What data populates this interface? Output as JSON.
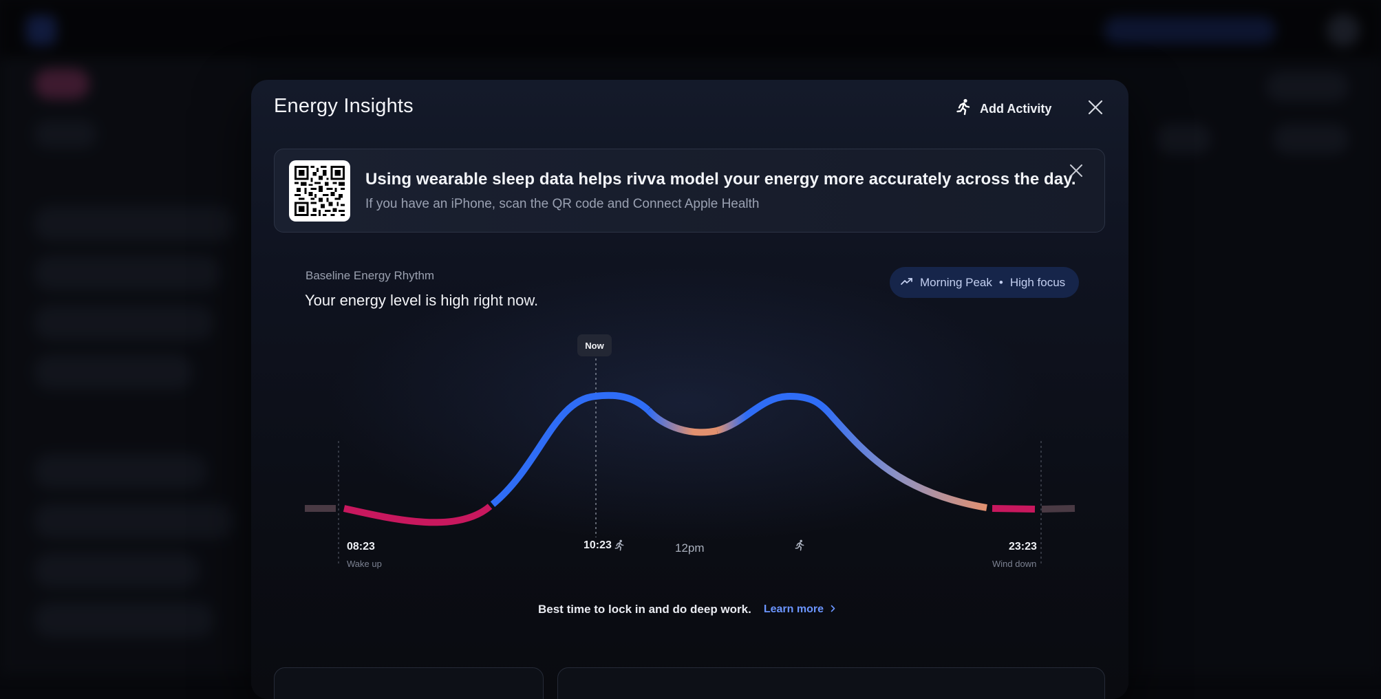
{
  "modal": {
    "title": "Energy Insights",
    "add_activity_label": "Add Activity",
    "close_icon": "close-icon",
    "activity_icon": "running-person-icon"
  },
  "banner": {
    "title": "Using wearable sleep data helps rivva model your energy more accurately across the day.",
    "subtitle": "If you have an iPhone, scan the QR code and Connect Apple Health",
    "qr_icon": "qr-code-icon"
  },
  "rhythm": {
    "label": "Baseline Energy Rhythm",
    "headline": "Your energy level is high right now.",
    "badge_text": "Morning Peak",
    "badge_separator": "•",
    "badge_text2": "High focus",
    "badge_icon": "trending-up-icon"
  },
  "chart_data": {
    "type": "line",
    "title": "",
    "markers": {
      "now_label": "Now",
      "now_time": "10:23",
      "noon_label": "12pm",
      "wake_time": "08:23",
      "wake_label": "Wake up",
      "wind_time": "23:23",
      "wind_label": "Wind down"
    },
    "grid": false,
    "legend": "none",
    "colors": {
      "high": "#2f6df6",
      "mid": "#e2916f",
      "low": "#c8185e",
      "off": "#4a3a44"
    }
  },
  "footer": {
    "message": "Best time to lock in and do deep work.",
    "link_label": "Learn more",
    "link_icon": "chevron-right-icon"
  }
}
